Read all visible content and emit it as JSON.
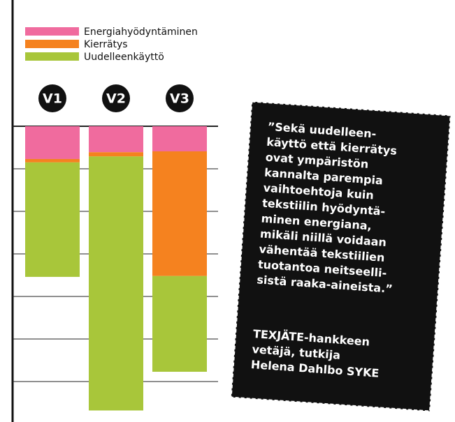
{
  "chart_data": {
    "type": "bar",
    "stacked": true,
    "categories": [
      "V1",
      "V2",
      "V3"
    ],
    "series": [
      {
        "name": "Energiahyödyntäminen",
        "color": "#f06b9e",
        "values": [
          -0.77,
          -0.61,
          -0.59
        ]
      },
      {
        "name": "Kierrätys",
        "color": "#f5821f",
        "values": [
          -0.08,
          -0.1,
          -2.93
        ]
      },
      {
        "name": "Uudelleenkäyttö",
        "color": "#a8c63a",
        "values": [
          -2.69,
          -5.97,
          -2.25
        ]
      }
    ],
    "ylim": [
      -6.9,
      0
    ],
    "yticks": [
      0,
      -1,
      -2,
      -3,
      -4,
      -5,
      -6
    ],
    "grid": true
  },
  "quote": {
    "lines": [
      "”Sekä uudelleen-",
      "käyttö että kierrätys",
      "ovat ympäristön",
      "kannalta parempia",
      "vaihtoehtoja kuin",
      "tekstiilin hyödyntä-",
      "minen energiana,",
      "mikäli niillä voidaan",
      "vähentää tekstiilien",
      "tuotantoa neitseelli-",
      "sistä raaka-aineista.”"
    ],
    "attribution": [
      "TEXJÄTE-hankkeen",
      "vetäjä, tutkija",
      "Helena Dahlbo SYKE"
    ]
  }
}
